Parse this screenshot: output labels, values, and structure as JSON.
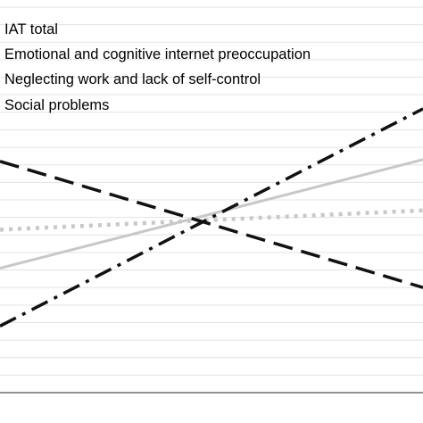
{
  "chart_data": {
    "type": "line",
    "title": "",
    "xlabel": "",
    "ylabel": "",
    "x": [
      0,
      1
    ],
    "xlim": [
      0,
      1
    ],
    "ylim": [
      0,
      22
    ],
    "grid": true,
    "legend_placement": "top-left",
    "series": [
      {
        "name": "IAT total",
        "values": [
          7.1,
          13.3
        ],
        "color": "#c8c8c8",
        "style": "solid"
      },
      {
        "name": "Emotional and cognitive internet preoccupation",
        "values": [
          9.3,
          10.4
        ],
        "color": "#c8c8c8",
        "style": "dotted"
      },
      {
        "name": "Neglecting work and lack of self-control",
        "values": [
          13.2,
          6.0
        ],
        "color": "#111111",
        "style": "dashed"
      },
      {
        "name": "Social problems",
        "values": [
          3.8,
          16.2
        ],
        "color": "#111111",
        "style": "dashdot"
      }
    ]
  }
}
